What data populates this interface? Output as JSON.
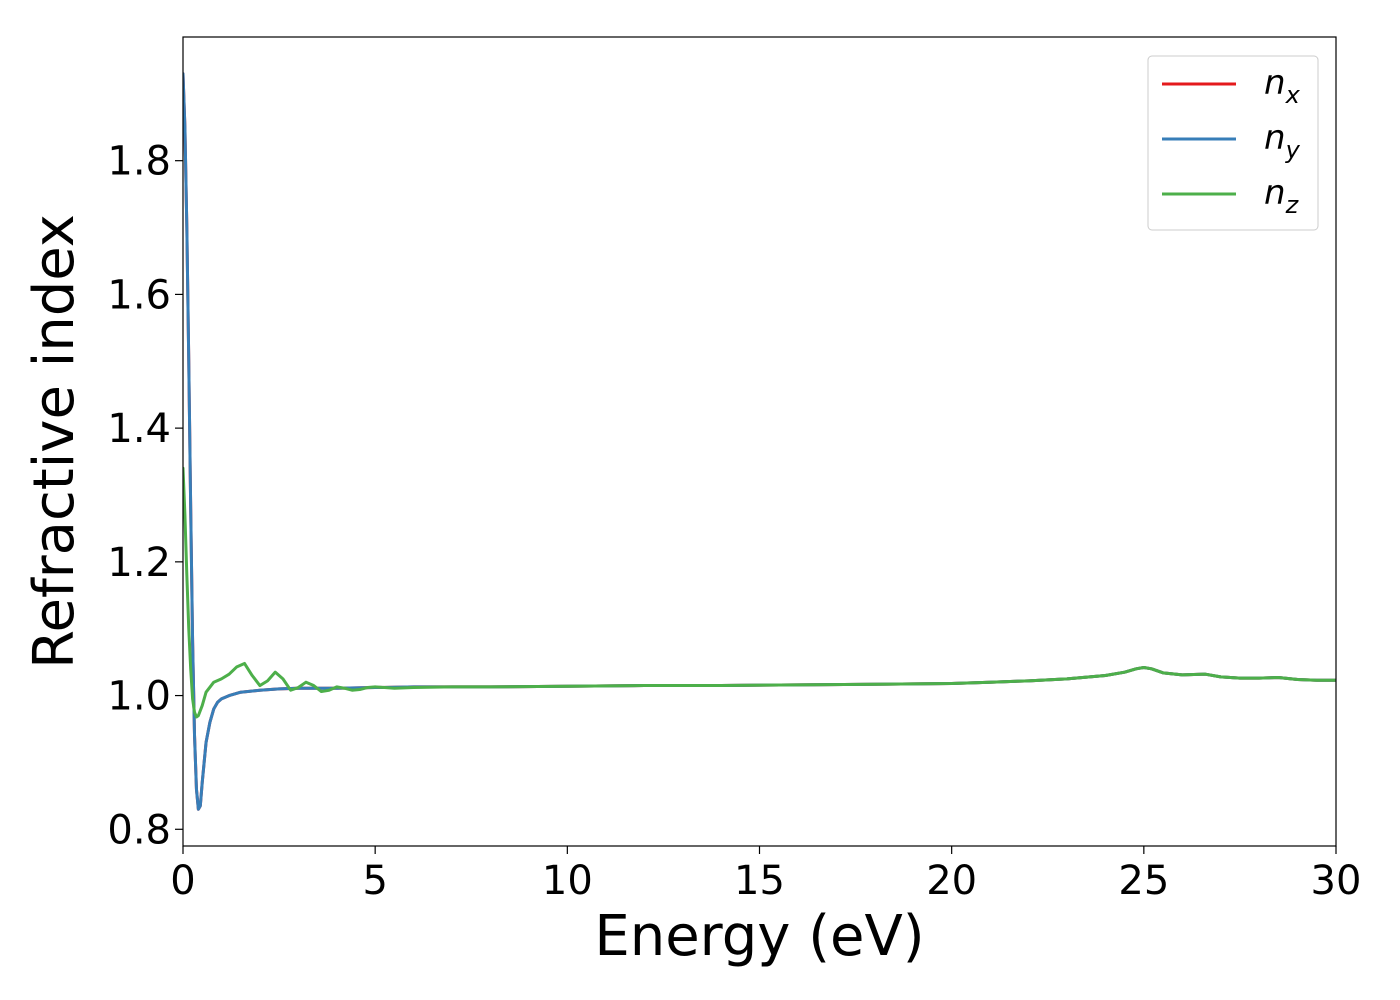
{
  "chart_data": {
    "type": "line",
    "title": "",
    "xlabel": "Energy (eV)",
    "ylabel": "Refractive index",
    "xlim": [
      0,
      30
    ],
    "ylim": [
      0.775,
      1.985
    ],
    "xticks": [
      0,
      5,
      10,
      15,
      20,
      25,
      30
    ],
    "yticks": [
      0.8,
      1.0,
      1.2,
      1.4,
      1.6,
      1.8
    ],
    "xtick_labels": [
      "0",
      "5",
      "10",
      "15",
      "20",
      "25",
      "30"
    ],
    "ytick_labels": [
      "0.8",
      "1.0",
      "1.2",
      "1.4",
      "1.6",
      "1.8"
    ],
    "grid": false,
    "legend_position": "top-right",
    "series": [
      {
        "name": "n",
        "subscript": "x",
        "color": "#e41a1c",
        "x": [
          0,
          0.05,
          0.1,
          0.15,
          0.2,
          0.25,
          0.3,
          0.35,
          0.4,
          0.45,
          0.5,
          0.6,
          0.7,
          0.8,
          0.9,
          1.0,
          1.2,
          1.5,
          2.0,
          2.5,
          3.0,
          4.0,
          5.0,
          6.0,
          7.0,
          8.0,
          10.0,
          12.0,
          14.0,
          16.0,
          18.0,
          20.0,
          21.0,
          22.0,
          23.0,
          24.0,
          24.5,
          24.8,
          25.0,
          25.2,
          25.5,
          26.0,
          26.6,
          27.0,
          27.5,
          28.0,
          28.5,
          29.0,
          29.5,
          30.0
        ],
        "y": [
          1.93,
          1.85,
          1.7,
          1.5,
          1.28,
          1.08,
          0.94,
          0.86,
          0.83,
          0.835,
          0.87,
          0.93,
          0.96,
          0.98,
          0.99,
          0.995,
          1.0,
          1.005,
          1.008,
          1.01,
          1.011,
          1.011,
          1.012,
          1.013,
          1.013,
          1.013,
          1.014,
          1.015,
          1.015,
          1.016,
          1.017,
          1.018,
          1.02,
          1.022,
          1.025,
          1.03,
          1.035,
          1.04,
          1.042,
          1.04,
          1.034,
          1.031,
          1.032,
          1.028,
          1.026,
          1.026,
          1.027,
          1.024,
          1.023,
          1.023
        ]
      },
      {
        "name": "n",
        "subscript": "y",
        "color": "#377eb8",
        "x": [
          0,
          0.05,
          0.1,
          0.15,
          0.2,
          0.25,
          0.3,
          0.35,
          0.4,
          0.45,
          0.5,
          0.6,
          0.7,
          0.8,
          0.9,
          1.0,
          1.2,
          1.5,
          2.0,
          2.5,
          3.0,
          4.0,
          5.0,
          6.0,
          7.0,
          8.0,
          10.0,
          12.0,
          14.0,
          16.0,
          18.0,
          20.0,
          21.0,
          22.0,
          23.0,
          24.0,
          24.5,
          24.8,
          25.0,
          25.2,
          25.5,
          26.0,
          26.6,
          27.0,
          27.5,
          28.0,
          28.5,
          29.0,
          29.5,
          30.0
        ],
        "y": [
          1.93,
          1.85,
          1.7,
          1.5,
          1.28,
          1.08,
          0.94,
          0.86,
          0.83,
          0.835,
          0.87,
          0.93,
          0.96,
          0.98,
          0.99,
          0.995,
          1.0,
          1.005,
          1.008,
          1.01,
          1.011,
          1.011,
          1.012,
          1.013,
          1.013,
          1.013,
          1.014,
          1.015,
          1.015,
          1.016,
          1.017,
          1.018,
          1.02,
          1.022,
          1.025,
          1.03,
          1.035,
          1.04,
          1.042,
          1.04,
          1.034,
          1.031,
          1.032,
          1.028,
          1.026,
          1.026,
          1.027,
          1.024,
          1.023,
          1.023
        ]
      },
      {
        "name": "n",
        "subscript": "z",
        "color": "#4daf4a",
        "x": [
          0,
          0.05,
          0.1,
          0.15,
          0.2,
          0.25,
          0.3,
          0.35,
          0.4,
          0.5,
          0.6,
          0.8,
          1.0,
          1.2,
          1.4,
          1.6,
          1.8,
          2.0,
          2.2,
          2.4,
          2.6,
          2.8,
          3.0,
          3.2,
          3.4,
          3.6,
          3.8,
          4.0,
          4.2,
          4.4,
          4.6,
          4.8,
          5.0,
          5.5,
          6.0,
          7.0,
          8.0,
          10.0,
          12.0,
          14.0,
          16.0,
          18.0,
          20.0,
          21.0,
          22.0,
          23.0,
          24.0,
          24.5,
          24.8,
          25.0,
          25.2,
          25.5,
          26.0,
          26.6,
          27.0,
          27.5,
          28.0,
          28.5,
          29.0,
          29.5,
          30.0
        ],
        "y": [
          1.34,
          1.27,
          1.18,
          1.1,
          1.04,
          0.995,
          0.975,
          0.968,
          0.97,
          0.985,
          1.005,
          1.02,
          1.025,
          1.032,
          1.043,
          1.048,
          1.03,
          1.015,
          1.022,
          1.035,
          1.025,
          1.008,
          1.012,
          1.02,
          1.015,
          1.006,
          1.008,
          1.013,
          1.011,
          1.008,
          1.009,
          1.012,
          1.013,
          1.011,
          1.012,
          1.013,
          1.013,
          1.014,
          1.015,
          1.015,
          1.016,
          1.017,
          1.018,
          1.02,
          1.022,
          1.025,
          1.03,
          1.035,
          1.04,
          1.042,
          1.04,
          1.034,
          1.031,
          1.032,
          1.028,
          1.026,
          1.026,
          1.027,
          1.024,
          1.023,
          1.023
        ]
      }
    ]
  }
}
